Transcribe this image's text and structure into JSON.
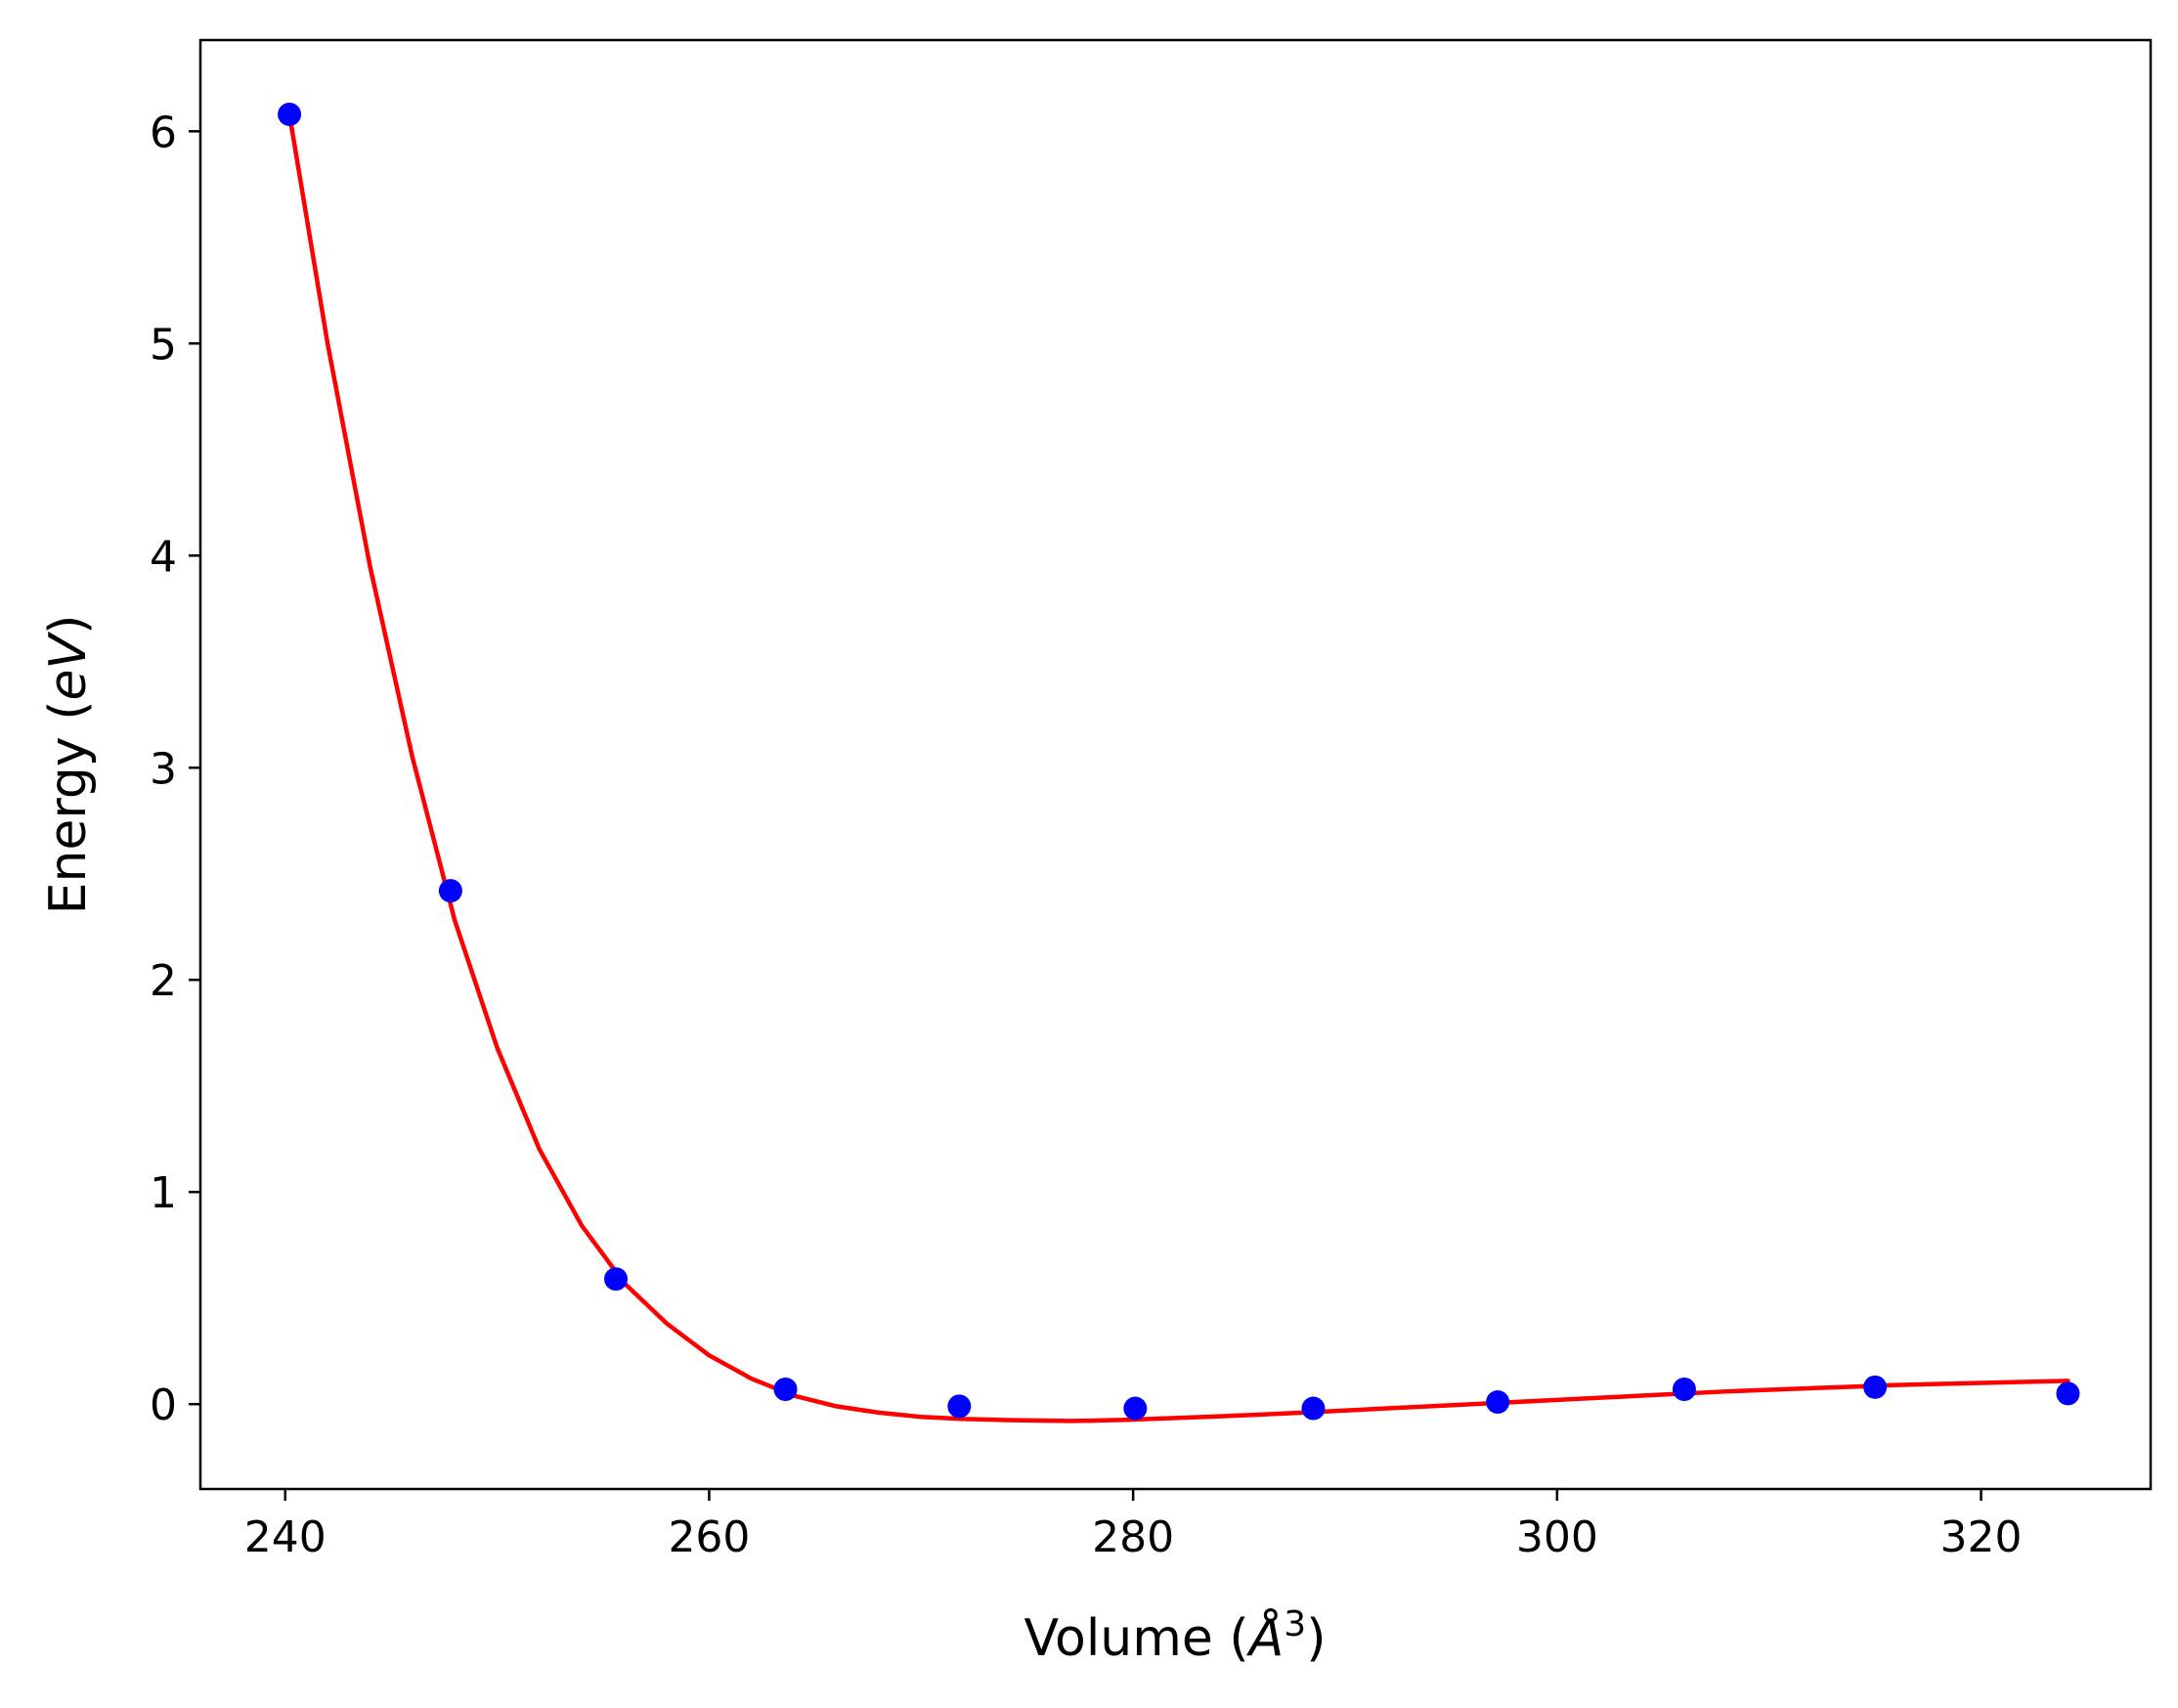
{
  "chart_data": {
    "type": "scatter",
    "title": "",
    "xlabel": {
      "prefix": "Volume (",
      "symbol": "Å",
      "superscript": "3",
      "suffix": ")"
    },
    "ylabel": {
      "prefix": "Energy (",
      "italic": "eV",
      "suffix": ")"
    },
    "xlim": [
      236,
      328
    ],
    "ylim": [
      -0.4,
      6.43
    ],
    "x_ticks": [
      240,
      260,
      280,
      300,
      320
    ],
    "y_ticks": [
      0,
      1,
      2,
      3,
      4,
      5,
      6
    ],
    "grid": false,
    "legend": false,
    "series": [
      {
        "kind": "points",
        "color": "#0000ff",
        "x": [
          240.2,
          247.8,
          255.6,
          263.6,
          271.8,
          280.1,
          288.5,
          297.2,
          306.0,
          315.0,
          324.1
        ],
        "y": [
          6.08,
          2.42,
          0.59,
          0.07,
          -0.01,
          -0.02,
          -0.02,
          0.01,
          0.07,
          0.08,
          0.05
        ]
      },
      {
        "kind": "fit-curve",
        "color": "#ff0000",
        "x": [
          240.2,
          242,
          244,
          246,
          248,
          250,
          252,
          254,
          256,
          258,
          260,
          262,
          264,
          266,
          268,
          270,
          272,
          274,
          276,
          277,
          278,
          280,
          284,
          288,
          292,
          296,
          300,
          304,
          308,
          312,
          316,
          320,
          324.1
        ],
        "y": [
          6.08,
          5.0,
          3.95,
          3.05,
          2.28,
          1.68,
          1.2,
          0.84,
          0.57,
          0.38,
          0.23,
          0.12,
          0.04,
          -0.01,
          -0.04,
          -0.06,
          -0.07,
          -0.075,
          -0.078,
          -0.079,
          -0.078,
          -0.073,
          -0.058,
          -0.04,
          -0.02,
          0.0,
          0.02,
          0.04,
          0.06,
          0.075,
          0.09,
          0.1,
          0.11
        ]
      }
    ]
  }
}
